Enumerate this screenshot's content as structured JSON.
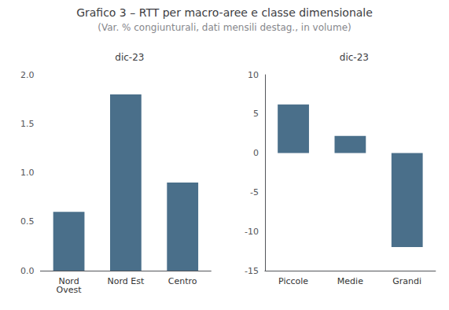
{
  "title": "Grafico 3 – RTT per macro-aree e classe dimensionale",
  "subtitle": "(Var. % congiunturali, dati mensili destag., in volume)",
  "chart_data": [
    {
      "type": "bar",
      "title": "dic-23",
      "categories": [
        "Nord\nOvest",
        "Nord Est",
        "Centro"
      ],
      "values": [
        0.6,
        1.8,
        0.9
      ],
      "color": "#4a6f8a",
      "ylim": [
        0.0,
        2.0
      ],
      "yticks": [
        {
          "value": 0.0,
          "label": "0.0"
        },
        0.5,
        {
          "value": 1.0,
          "label": "1.0"
        },
        1.5,
        {
          "value": 2.0,
          "label": "2.0"
        }
      ],
      "grid": false
    },
    {
      "type": "bar",
      "title": "dic-23",
      "categories": [
        "Piccole",
        "Medie",
        "Grandi"
      ],
      "values": [
        6.2,
        2.2,
        -12.0
      ],
      "color": "#4a6f8a",
      "ylim": [
        -15,
        10
      ],
      "yticks": [
        -15,
        -10,
        -5,
        0,
        5,
        10
      ],
      "grid": false
    }
  ]
}
